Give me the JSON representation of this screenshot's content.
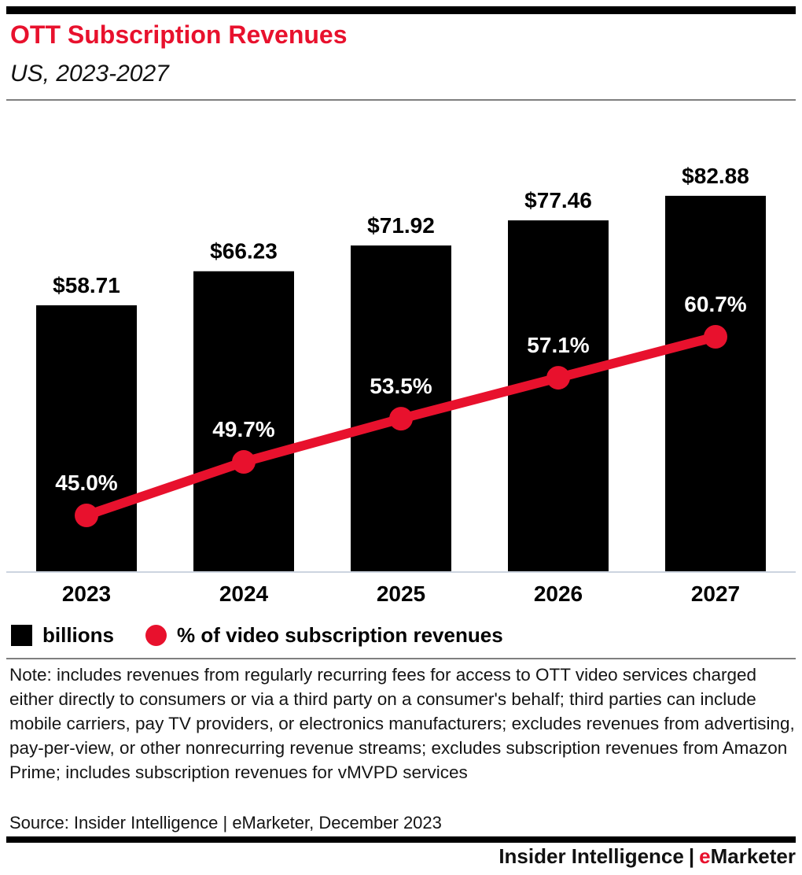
{
  "header": {
    "title": "OTT Subscription Revenues",
    "subtitle": "US, 2023-2027"
  },
  "chart_data": {
    "type": "bar",
    "subtype": "bar-with-line-overlay",
    "categories": [
      "2023",
      "2024",
      "2025",
      "2026",
      "2027"
    ],
    "series": [
      {
        "name": "billions",
        "type": "bar",
        "values": [
          58.71,
          66.23,
          71.92,
          77.46,
          82.88
        ],
        "labels": [
          "$58.71",
          "$66.23",
          "$71.92",
          "$77.46",
          "$82.88"
        ],
        "color": "#000000"
      },
      {
        "name": "% of video subscription revenues",
        "type": "line",
        "values": [
          45.0,
          49.7,
          53.5,
          57.1,
          60.7
        ],
        "labels": [
          "45.0%",
          "49.7%",
          "53.5%",
          "57.1%",
          "60.7%"
        ],
        "color": "#e8112d"
      }
    ],
    "title": "OTT Subscription Revenues",
    "xlabel": "",
    "ylabel": "",
    "y_axis_visible": false,
    "grid": false,
    "data_labels": true,
    "legend_position": "bottom"
  },
  "legend": {
    "items": [
      {
        "label": "billions",
        "swatch": "black-square"
      },
      {
        "label": "% of video subscription revenues",
        "swatch": "red-circle"
      }
    ]
  },
  "note": "Note: includes revenues from regularly recurring fees for access to OTT video services charged either directly to consumers or via a third party on a consumer's behalf; third parties can include mobile carriers, pay TV providers, or electronics manufacturers; excludes revenues from advertising, pay-per-view, or other nonrecurring revenue streams; excludes subscription revenues from Amazon Prime; includes subscription revenues for vMVPD services",
  "source": "Source: Insider Intelligence | eMarketer, December 2023",
  "footer": {
    "brand": "Insider Intelligence",
    "separator": "|",
    "emarketer_e": "e",
    "emarketer_rest": "Marketer"
  },
  "colors": {
    "accent_red": "#e8112d",
    "bar_black": "#000000",
    "axis_line": "#ccd4e0",
    "divider_gray": "#7f7f7f",
    "text_black": "#141414"
  }
}
